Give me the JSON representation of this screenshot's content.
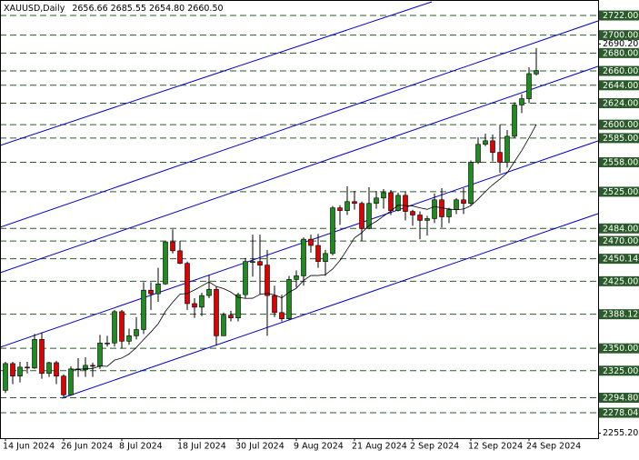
{
  "chart_data": {
    "type": "candlestick",
    "title": "XAUUSD,Daily",
    "quote": "2656.66 2685.55 2654.80 2660.50",
    "categories": [
      "14 Jun 2024",
      null,
      null,
      null,
      null,
      null,
      null,
      null,
      "26 Jun 2024",
      null,
      null,
      null,
      null,
      null,
      null,
      null,
      "8 Jul 2024",
      null,
      null,
      null,
      null,
      null,
      null,
      null,
      "18 Jul 2024",
      null,
      null,
      null,
      null,
      null,
      null,
      null,
      "30 Jul 2024",
      null,
      null,
      null,
      null,
      null,
      null,
      null,
      "9 Aug 2024",
      null,
      null,
      null,
      null,
      null,
      null,
      null,
      "21 Aug 2024",
      null,
      null,
      null,
      null,
      null,
      null,
      null,
      "2 Sep 2024",
      null,
      null,
      null,
      null,
      null,
      null,
      null,
      "12 Sep 2024",
      null,
      null,
      null,
      null,
      null,
      null,
      null,
      "24 Sep 2024",
      null
    ],
    "open": [
      2303,
      2333,
      2319,
      2329,
      2328,
      2360,
      2322,
      2334,
      2319,
      2298,
      2327,
      2326,
      2331,
      2330,
      2356,
      2356,
      2391,
      2358,
      2364,
      2371,
      2415,
      2411,
      2422,
      2469,
      2459,
      2445,
      2400,
      2396,
      2409,
      2416,
      2364,
      2387,
      2384,
      2410,
      2447,
      2447,
      2443,
      2409,
      2390,
      2383,
      2427,
      2431,
      2472,
      2465,
      2447,
      2456,
      2507,
      2504,
      2514,
      2512,
      2484,
      2512,
      2518,
      2524,
      2504,
      2521,
      2503,
      2499,
      2493,
      2495,
      2516,
      2497,
      2505,
      2516,
      2512,
      2558,
      2578,
      2582,
      2569,
      2558,
      2587,
      2622,
      2629,
      2656.66
    ],
    "high": [
      2335,
      2335,
      2335,
      2335,
      2366,
      2368,
      2335,
      2336,
      2321,
      2330,
      2339,
      2340,
      2334,
      2365,
      2364,
      2393,
      2393,
      2372,
      2385,
      2424,
      2424,
      2440,
      2468,
      2483,
      2470,
      2447,
      2406,
      2412,
      2432,
      2419,
      2390,
      2392,
      2412,
      2451,
      2477,
      2477,
      2460,
      2420,
      2410,
      2431,
      2437,
      2474,
      2477,
      2478,
      2460,
      2509,
      2510,
      2531,
      2526,
      2514,
      2530,
      2526,
      2528,
      2527,
      2524,
      2525,
      2505,
      2503,
      2498,
      2523,
      2529,
      2507,
      2518,
      2529,
      2560,
      2586,
      2590,
      2589,
      2600,
      2594,
      2625,
      2634,
      2664,
      2685.55
    ],
    "low": [
      2300,
      2310,
      2312,
      2322,
      2327,
      2316,
      2318,
      2310,
      2294,
      2297,
      2318,
      2318,
      2318,
      2327,
      2352,
      2352,
      2350,
      2354,
      2360,
      2366,
      2393,
      2402,
      2421,
      2456,
      2444,
      2393,
      2384,
      2386,
      2406,
      2353,
      2364,
      2380,
      2380,
      2406,
      2430,
      2410,
      2364,
      2385,
      2380,
      2382,
      2418,
      2420,
      2457,
      2440,
      2431,
      2454,
      2488,
      2499,
      2505,
      2470,
      2483,
      2506,
      2506,
      2499,
      2503,
      2493,
      2487,
      2472,
      2476,
      2490,
      2485,
      2490,
      2500,
      2500,
      2510,
      2556,
      2576,
      2559,
      2546,
      2552,
      2585,
      2613,
      2624,
      2654.8
    ],
    "close": [
      2333,
      2319,
      2329,
      2328,
      2360,
      2322,
      2334,
      2319,
      2298,
      2327,
      2326,
      2331,
      2330,
      2356,
      2356,
      2391,
      2358,
      2364,
      2371,
      2415,
      2411,
      2422,
      2469,
      2459,
      2445,
      2400,
      2396,
      2409,
      2416,
      2364,
      2387,
      2384,
      2410,
      2447,
      2447,
      2443,
      2409,
      2390,
      2383,
      2427,
      2431,
      2472,
      2465,
      2447,
      2456,
      2507,
      2504,
      2514,
      2512,
      2484,
      2512,
      2518,
      2524,
      2504,
      2521,
      2503,
      2499,
      2493,
      2495,
      2516,
      2497,
      2505,
      2516,
      2512,
      2558,
      2578,
      2582,
      2569,
      2558,
      2587,
      2622,
      2629,
      2657,
      2660.5
    ],
    "ma": [
      null,
      null,
      null,
      null,
      null,
      null,
      null,
      null,
      null,
      2326.9,
      2326.2,
      2327.4,
      2327.5,
      2330.3,
      2329.9,
      2336.8,
      2339.2,
      2343.7,
      2351,
      2359.8,
      2368.3,
      2377.4,
      2391.3,
      2401.6,
      2410.5,
      2411.4,
      2415.2,
      2419.7,
      2424.2,
      2419.1,
      2416.7,
      2412.9,
      2407,
      2405.8,
      2406,
      2410.3,
      2411.6,
      2409.7,
      2406.4,
      2412.7,
      2417.1,
      2425.9,
      2431.4,
      2431.4,
      2432.3,
      2438.7,
      2448.2,
      2460.6,
      2473.5,
      2479.2,
      2487.3,
      2491.9,
      2497.8,
      2503.5,
      2510,
      2509.6,
      2509.1,
      2507,
      2505.3,
      2508.5,
      2507,
      2505.7,
      2504.9,
      2505.7,
      2509.4,
      2516.9,
      2525.2,
      2532.8,
      2539.1,
      2546.2,
      2558.7,
      2571.1,
      2585.2,
      2600.1
    ],
    "up_color": "#1e8c1e",
    "down_color": "#e00000",
    "ma_color": "#000000",
    "level_color": "#2b5a2b",
    "ylim": [
      2249.6,
      2739.3
    ],
    "yticks": [
      {
        "value": 2690.2,
        "label": "2690.20"
      },
      {
        "value": 2255.2,
        "label": "2255.20"
      }
    ],
    "levels": [
      {
        "value": 2722,
        "label": "2722.00"
      },
      {
        "value": 2700,
        "label": "2700.00"
      },
      {
        "value": 2680,
        "label": "2680.00"
      },
      {
        "value": 2660,
        "label": "2660.00"
      },
      {
        "value": 2644,
        "label": "2644.00"
      },
      {
        "value": 2624,
        "label": "2624.00"
      },
      {
        "value": 2600,
        "label": "2600.00"
      },
      {
        "value": 2585,
        "label": "2585.00"
      },
      {
        "value": 2558,
        "label": "2558.00"
      },
      {
        "value": 2525,
        "label": "2525.00"
      },
      {
        "value": 2484,
        "label": "2484.00"
      },
      {
        "value": 2470,
        "label": "2470.00"
      },
      {
        "value": 2450.14,
        "label": "2450.14"
      },
      {
        "value": 2425,
        "label": "2425.00"
      },
      {
        "value": 2388.12,
        "label": "2388.12"
      },
      {
        "value": 2350,
        "label": "2350.00"
      },
      {
        "value": 2325,
        "label": "2325.00"
      },
      {
        "value": 2294.8,
        "label": "2294.80"
      },
      {
        "value": 2278.04,
        "label": "2278.04"
      }
    ]
  }
}
